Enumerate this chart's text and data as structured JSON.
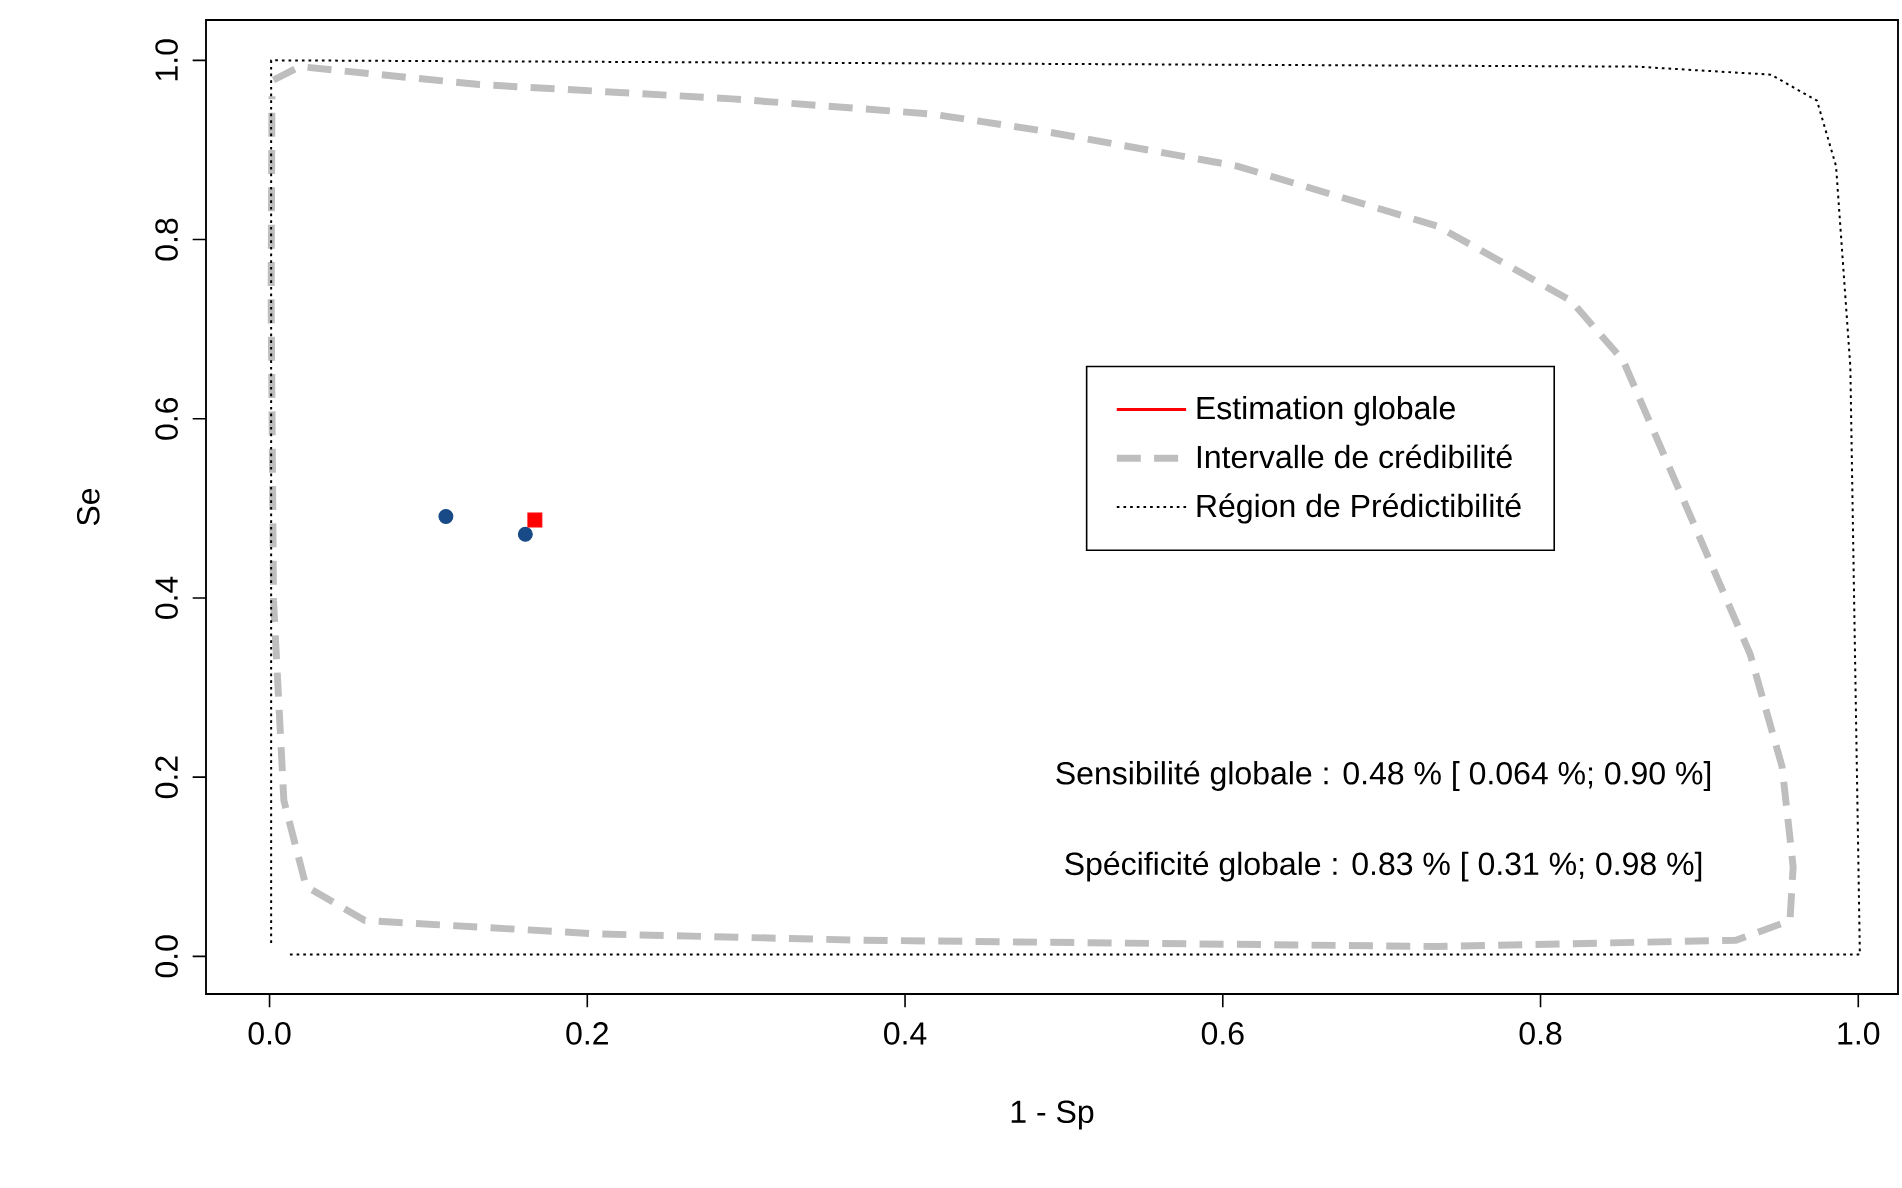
{
  "chart_data": {
    "type": "scatter",
    "xlabel": "1 - Sp",
    "ylabel": "Se",
    "xlim": [
      -0.04,
      1.025
    ],
    "ylim": [
      -0.042,
      1.045
    ],
    "xticks": [
      {
        "value": 0,
        "label": "0.0"
      },
      0.2,
      0.4,
      0.6,
      0.8,
      {
        "value": 1,
        "label": "1.0"
      }
    ],
    "yticks": [
      {
        "value": 0,
        "label": "0.0"
      },
      0.2,
      0.4,
      0.6,
      0.8,
      {
        "value": 1,
        "label": "1.0"
      }
    ],
    "legend": "right",
    "series": [
      {
        "color": "#174a87",
        "marker": "circle",
        "x": [
          0.111,
          0.161
        ],
        "values": [
          0.491,
          0.471
        ]
      },
      {
        "name": "Estimation globale",
        "color": "#ff0000",
        "marker": "square",
        "x": [
          0.167
        ],
        "values": [
          0.487
        ]
      },
      {
        "type": "line",
        "name": "Intervalle de crédibilité",
        "color": "#bebebe",
        "line_style": "dashed",
        "x": [
          0.0025,
          0.019,
          0.132,
          0.291,
          0.417,
          0.484,
          0.609,
          0.735,
          0.819,
          0.852,
          0.932,
          0.952,
          0.959,
          0.957,
          0.923,
          0.735,
          0.374,
          0.207,
          0.06,
          0.023,
          0.009,
          0.0025,
          0.001,
          0.0015
        ],
        "values": [
          0.978,
          0.993,
          0.973,
          0.957,
          0.94,
          0.922,
          0.882,
          0.815,
          0.732,
          0.665,
          0.337,
          0.212,
          0.1,
          0.04,
          0.018,
          0.011,
          0.018,
          0.025,
          0.04,
          0.078,
          0.174,
          0.397,
          0.732,
          0.96
        ]
      },
      {
        "type": "line",
        "name": "Région de Prédictibilité",
        "color": "#000000",
        "line_style": "dotted",
        "x": [
          0.001,
          0.001,
          0.86,
          0.945,
          0.974,
          0.986,
          0.995,
          1.001,
          0.012
        ],
        "values": [
          0.015,
          1.0,
          0.993,
          0.984,
          0.955,
          0.882,
          0.658,
          0.002,
          0.002
        ]
      }
    ],
    "annotations": [
      "Sensibilité globale :  0.48 % [ 0.064 %;  0.90 %]",
      "Spécificité globale :  0.83 % [ 0.31 %;  0.98 %]"
    ]
  }
}
